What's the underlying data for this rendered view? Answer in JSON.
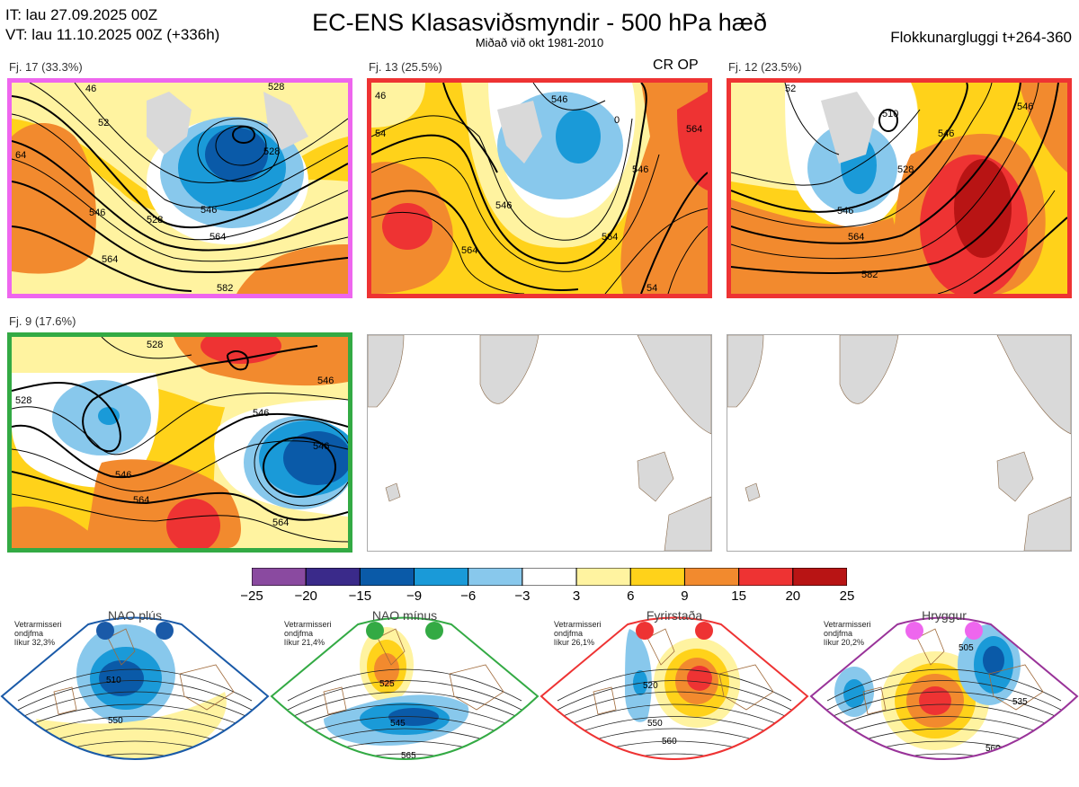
{
  "header": {
    "it": "IT: lau 27.09.2025 00Z",
    "vt": "VT: lau 11.10.2025 00Z  (+336h)",
    "title": "EC-ENS Klasasviðsmyndir - 500 hPa hæð",
    "subtitle": "Miðað við okt 1981-2010",
    "window": "Flokkunargluggi t+264-360"
  },
  "panels": [
    {
      "label": "Fj. 17 (33.3%)",
      "border": "#ee66ee",
      "tag": ""
    },
    {
      "label": "Fj. 13 (25.5%)",
      "border": "#ee3333",
      "tag": "CR OP"
    },
    {
      "label": "Fj. 12 (23.5%)",
      "border": "#ee3333",
      "tag": ""
    },
    {
      "label": "Fj. 9 (17.6%)",
      "border": "#33aa44",
      "tag": ""
    }
  ],
  "contours": {
    "p1": [
      "46",
      "52",
      "64",
      "528",
      "546",
      "528",
      "564",
      "564",
      "546",
      "582",
      "528"
    ],
    "p2": [
      "46",
      "54",
      "546",
      "564",
      "546",
      "564",
      "0",
      "546",
      "564",
      "54"
    ],
    "p3": [
      "510",
      "528",
      "546",
      "564",
      "582",
      "546",
      "546",
      "52"
    ],
    "p4": [
      "528",
      "546",
      "528",
      "546",
      "546",
      "564",
      "564",
      "546"
    ]
  },
  "colorbar": {
    "ticks": [
      "−25",
      "−20",
      "−15",
      "−9",
      "−6",
      "−3",
      "3",
      "6",
      "9",
      "15",
      "20",
      "25"
    ],
    "colors": [
      "#8a4aa0",
      "#3a2a8a",
      "#0a5aa8",
      "#1a9ad8",
      "#88c8ec",
      "#ffffff",
      "#fff3a0",
      "#ffd21a",
      "#f28a2e",
      "#ee3333",
      "#b81414"
    ]
  },
  "regimes": [
    {
      "name": "NAO plús",
      "note1": "Vetrarmisseri",
      "note2": "ondjfma",
      "note3": "líkur 32,3%",
      "border": "#1a5aa8",
      "dot": "#1a5aa8",
      "labels": [
        "510",
        "550"
      ]
    },
    {
      "name": "NAO mínus",
      "note1": "Vetrarmisseri",
      "note2": "ondjfma",
      "note3": "líkur 21,4%",
      "border": "#33aa44",
      "dot": "#33aa44",
      "labels": [
        "525",
        "545",
        "565"
      ]
    },
    {
      "name": "Fyrirstaða",
      "note1": "Vetrarmisseri",
      "note2": "ondjfma",
      "note3": "líkur 26,1%",
      "border": "#ee3333",
      "dot": "#ee3333",
      "labels": [
        "520",
        "550",
        "560"
      ]
    },
    {
      "name": "Hryggur",
      "note1": "Vetrarmisseri",
      "note2": "ondjfma",
      "note3": "líkur 20,2%",
      "border": "#993399",
      "dot": "#ee66ee",
      "labels": [
        "505",
        "535",
        "560"
      ]
    }
  ]
}
